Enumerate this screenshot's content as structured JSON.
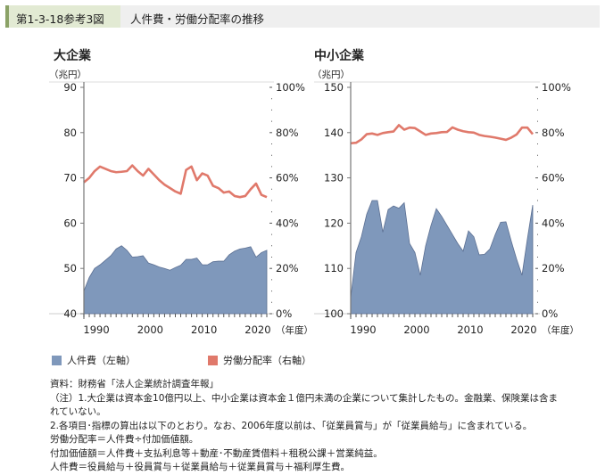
{
  "header": {
    "figure_number": "第1-3-18参考3図",
    "title": "人件費・労働分配率の推移"
  },
  "legend": {
    "labor_cost": "人件費（左軸）",
    "labor_share": "労働分配率（右軸）"
  },
  "colors": {
    "labor_cost_fill": "#7f98bb",
    "labor_cost_stroke": "#5b6f92",
    "labor_share": "#e0796b",
    "header_accent": "#8ba267"
  },
  "notes": [
    "資料：財務省「法人企業統計調査年報」",
    "（注）1.大企業は資本金10億円以上、中小企業は資本金１億円未満の企業について集計したもの。金融業、保険業は含ま",
    "れていない。",
    "2.各項目･指標の算出は以下のとおり。なお、2006年度以前は、「従業員賞与」が「従業員給与」に含まれている。",
    "労働分配率＝人件費÷付加価値額。",
    "付加価値額＝人件費＋支払利息等＋動産･不動産賃借料＋租税公課＋営業純益。",
    "人件費＝役員給与＋役員賞与＋従業員給与＋従業員賞与＋福利厚生費。"
  ],
  "chart_data": [
    {
      "type": "area+line",
      "title": "大企業",
      "ylabel": "（兆円）",
      "xlabel": "（年度）",
      "x": [
        1988,
        1989,
        1990,
        1991,
        1992,
        1993,
        1994,
        1995,
        1996,
        1997,
        1998,
        1999,
        2000,
        2001,
        2002,
        2003,
        2004,
        2005,
        2006,
        2007,
        2008,
        2009,
        2010,
        2011,
        2012,
        2013,
        2014,
        2015,
        2016,
        2017,
        2018,
        2019,
        2020,
        2021,
        2022
      ],
      "xticks": [
        "1990",
        "2000",
        "2010",
        "2020"
      ],
      "ylim": [
        40,
        90
      ],
      "yticks": [
        "40",
        "50",
        "60",
        "70",
        "80",
        "90"
      ],
      "y2lim": [
        0,
        100
      ],
      "y2ticks": [
        "0%",
        "20%",
        "40%",
        "60%",
        "80%",
        "100%"
      ],
      "series": [
        {
          "name": "人件費（左軸）",
          "axis": "left",
          "type": "area",
          "values": [
            45,
            48,
            50,
            50.8,
            51.8,
            52.8,
            54.3,
            55,
            54,
            52.5,
            52.6,
            52.8,
            51.2,
            50.8,
            50.3,
            50,
            49.6,
            50.2,
            50.7,
            52,
            52,
            52.3,
            50.8,
            50.8,
            51.5,
            51.6,
            51.6,
            53,
            53.8,
            54.3,
            54.5,
            54.8,
            52.5,
            53.5,
            54
          ]
        },
        {
          "name": "労働分配率（右軸）",
          "axis": "right",
          "type": "line",
          "values": [
            58,
            60,
            63,
            65,
            64,
            63,
            62.5,
            62.7,
            63,
            65.5,
            63,
            61,
            64,
            61.5,
            59,
            57,
            55.5,
            54,
            53,
            63.5,
            65,
            59,
            62,
            61,
            56.5,
            55.5,
            53.5,
            54,
            52,
            51.5,
            52,
            55,
            57.5,
            52.5,
            51.5
          ]
        }
      ]
    },
    {
      "type": "area+line",
      "title": "中小企業",
      "ylabel": "（兆円）",
      "xlabel": "（年度）",
      "x": [
        1988,
        1989,
        1990,
        1991,
        1992,
        1993,
        1994,
        1995,
        1996,
        1997,
        1998,
        1999,
        2000,
        2001,
        2002,
        2003,
        2004,
        2005,
        2006,
        2007,
        2008,
        2009,
        2010,
        2011,
        2012,
        2013,
        2014,
        2015,
        2016,
        2017,
        2018,
        2019,
        2020,
        2021,
        2022
      ],
      "xticks": [
        "1990",
        "2000",
        "2010",
        "2020"
      ],
      "ylim": [
        100,
        150
      ],
      "yticks": [
        "100",
        "110",
        "120",
        "130",
        "140",
        "150"
      ],
      "y2lim": [
        0,
        100
      ],
      "y2ticks": [
        "0%",
        "20%",
        "40%",
        "60%",
        "80%",
        "100%"
      ],
      "series": [
        {
          "name": "人件費（左軸）",
          "axis": "left",
          "type": "area",
          "values": [
            103.5,
            113.5,
            117,
            122,
            125,
            125,
            118,
            123,
            123.8,
            123.3,
            124.5,
            115.5,
            113.5,
            108.5,
            115,
            119.5,
            123.2,
            121.5,
            119.5,
            117.5,
            115.5,
            113.8,
            118.3,
            117,
            113,
            113.1,
            114.3,
            117.5,
            120.2,
            120.3,
            116,
            112,
            108.5,
            116.5,
            124
          ]
        },
        {
          "name": "労働分配率（右軸）",
          "axis": "right",
          "type": "line",
          "values": [
            75.3,
            75.5,
            77,
            79.3,
            79.6,
            79,
            79.8,
            80.2,
            80.5,
            83.3,
            81.3,
            82.2,
            82,
            80.5,
            79,
            79.6,
            79.8,
            80.2,
            80.3,
            82.3,
            81.3,
            80.6,
            80.2,
            80,
            79,
            78.5,
            78.2,
            77.8,
            77.3,
            76.8,
            77.8,
            79.2,
            82.2,
            82.2,
            79.3
          ]
        }
      ]
    }
  ]
}
